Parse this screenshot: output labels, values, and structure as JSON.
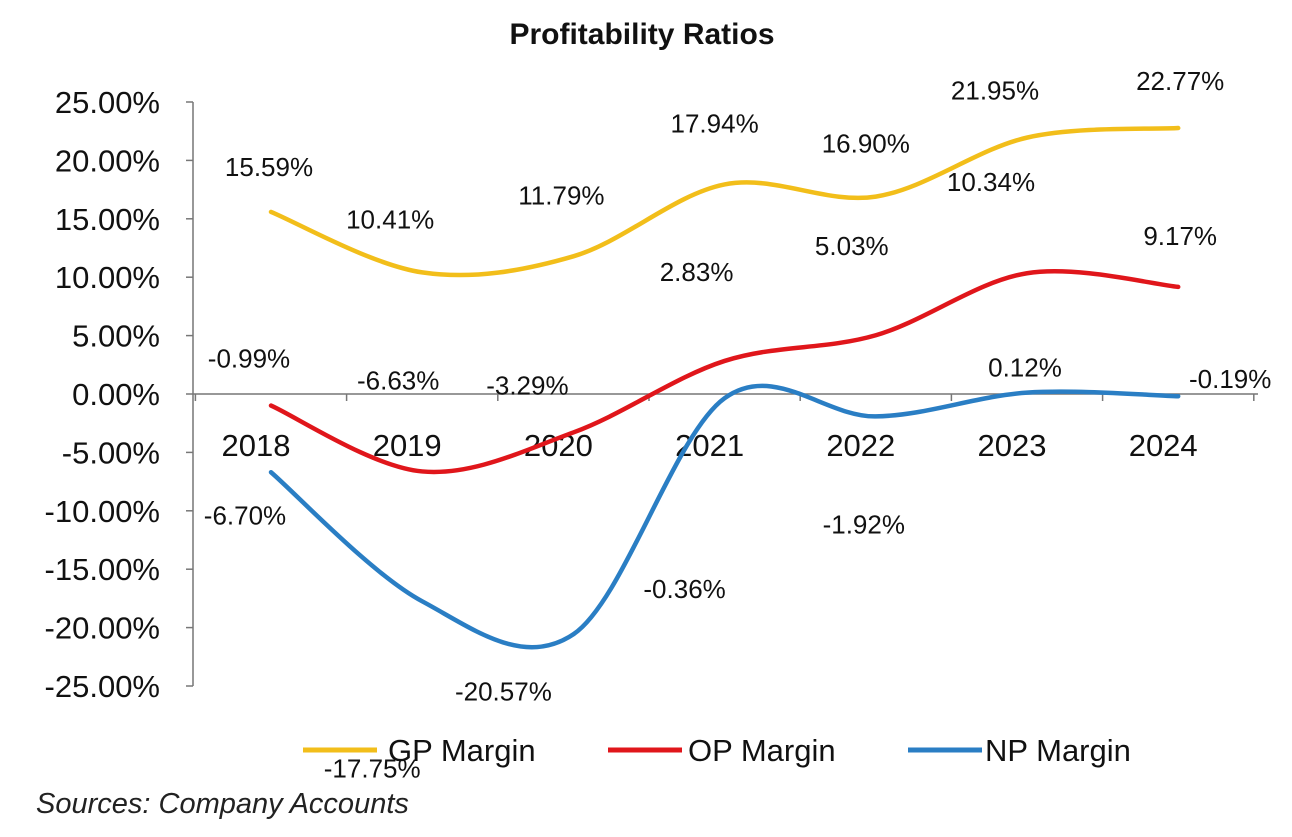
{
  "chart_data": {
    "type": "line",
    "title": "Profitability Ratios",
    "categories": [
      "2018",
      "2019",
      "2020",
      "2021",
      "2022",
      "2023",
      "2024"
    ],
    "ylim": [
      -25,
      25
    ],
    "yticks": [
      "25.00%",
      "20.00%",
      "15.00%",
      "10.00%",
      "5.00%",
      "0.00%",
      "-5.00%",
      "-10.00%",
      "-15.00%",
      "-20.00%",
      "-25.00%"
    ],
    "ytick_values": [
      25,
      20,
      15,
      10,
      5,
      0,
      -5,
      -10,
      -15,
      -20,
      -25
    ],
    "grid": false,
    "legend_position": "bottom",
    "series": [
      {
        "name": "GP Margin",
        "color": "#F2BE1A",
        "values": [
          15.59,
          10.41,
          11.79,
          17.94,
          16.9,
          21.95,
          22.77
        ],
        "labels": [
          "15.59%",
          "10.41%",
          "11.79%",
          "17.94%",
          "16.90%",
          "21.95%",
          "22.77%"
        ]
      },
      {
        "name": "OP Margin",
        "color": "#E0161B",
        "values": [
          -0.99,
          -6.63,
          -3.29,
          2.83,
          5.03,
          10.34,
          9.17
        ],
        "labels": [
          "-0.99%",
          "-6.63%",
          "-3.29%",
          "2.83%",
          "5.03%",
          "10.34%",
          "9.17%"
        ]
      },
      {
        "name": "NP Margin",
        "color": "#2A7EC4",
        "values": [
          -6.7,
          -17.75,
          -20.57,
          -0.36,
          -1.92,
          0.12,
          -0.19
        ],
        "labels": [
          "-6.70%",
          "-17.75%",
          "-20.57%",
          "-0.36%",
          "-1.92%",
          "0.12%",
          "-0.19%"
        ]
      }
    ]
  },
  "footer": {
    "source": "Sources: Company Accounts"
  }
}
